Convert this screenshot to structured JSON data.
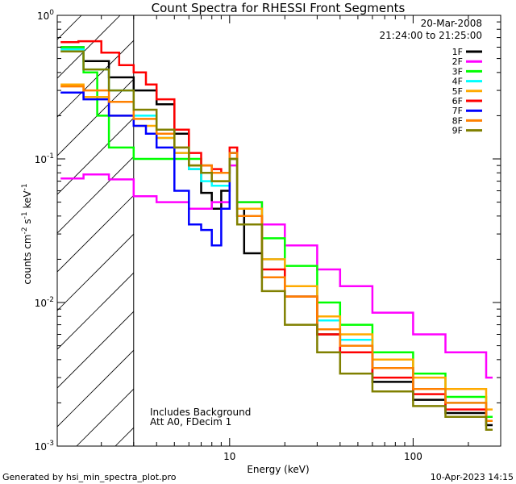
{
  "chart_data": {
    "type": "line",
    "title": "Count Spectra for RHESSI Front Segments",
    "xlabel": "Energy (keV)",
    "ylabel": "counts cm⁻² s⁻¹ keV⁻¹",
    "ylabel_parts": {
      "base": "counts cm",
      "exp1": "-2",
      "mid": " s",
      "exp2": "-1",
      "mid2": " keV",
      "exp3": "-1"
    },
    "xscale": "log",
    "yscale": "log",
    "xlim": [
      1.15,
      300
    ],
    "ylim": [
      0.001,
      1.0
    ],
    "x_ticks": [
      {
        "v": 10,
        "label": "10"
      },
      {
        "v": 100,
        "label": "100"
      }
    ],
    "y_ticks": [
      {
        "v": 1.0,
        "base": "10",
        "exp": "0"
      },
      {
        "v": 0.1,
        "base": "10",
        "exp": "-1"
      },
      {
        "v": 0.01,
        "base": "10",
        "exp": "-2"
      },
      {
        "v": 0.001,
        "base": "10",
        "exp": "-3"
      }
    ],
    "hatched_region_max_energy": 3,
    "legend_position": "top-right",
    "annotations": {
      "date": "20-Mar-2008",
      "time_range": "21:24:00 to 21:25:00",
      "background_note": "Includes Background",
      "attenuator_note": "Att A0, FDecim 1"
    },
    "series": [
      {
        "name": "1F",
        "color": "#000000",
        "values": [
          [
            1.2,
            0.6
          ],
          [
            1.6,
            0.48
          ],
          [
            2.2,
            0.37
          ],
          [
            3.0,
            0.3
          ],
          [
            4.0,
            0.24
          ],
          [
            5.0,
            0.15
          ],
          [
            6.0,
            0.085
          ],
          [
            7.0,
            0.058
          ],
          [
            8.0,
            0.045
          ],
          [
            9.0,
            0.06
          ],
          [
            10.0,
            0.1
          ],
          [
            11.0,
            0.045
          ],
          [
            12.0,
            0.022
          ],
          [
            15.0,
            0.015
          ],
          [
            20.0,
            0.011
          ],
          [
            30.0,
            0.006
          ],
          [
            40.0,
            0.0045
          ],
          [
            60.0,
            0.0028
          ],
          [
            100.0,
            0.0021
          ],
          [
            150.0,
            0.0017
          ],
          [
            250.0,
            0.0014
          ]
        ]
      },
      {
        "name": "2F",
        "color": "#ff00ff",
        "values": [
          [
            1.2,
            0.073
          ],
          [
            1.6,
            0.078
          ],
          [
            2.2,
            0.072
          ],
          [
            3.0,
            0.055
          ],
          [
            4.0,
            0.05
          ],
          [
            6.0,
            0.045
          ],
          [
            8.0,
            0.05
          ],
          [
            10.0,
            0.09
          ],
          [
            11.0,
            0.05
          ],
          [
            15.0,
            0.035
          ],
          [
            20.0,
            0.025
          ],
          [
            30.0,
            0.017
          ],
          [
            40.0,
            0.013
          ],
          [
            60.0,
            0.0085
          ],
          [
            100.0,
            0.006
          ],
          [
            150.0,
            0.0045
          ],
          [
            250.0,
            0.003
          ]
        ]
      },
      {
        "name": "3F",
        "color": "#00ff00",
        "values": [
          [
            1.2,
            0.6
          ],
          [
            1.6,
            0.4
          ],
          [
            1.9,
            0.2
          ],
          [
            2.2,
            0.12
          ],
          [
            3.0,
            0.1
          ],
          [
            4.0,
            0.1
          ],
          [
            5.0,
            0.1
          ],
          [
            6.0,
            0.1
          ],
          [
            7.0,
            0.09
          ],
          [
            8.0,
            0.08
          ],
          [
            10.0,
            0.11
          ],
          [
            11.0,
            0.05
          ],
          [
            15.0,
            0.028
          ],
          [
            20.0,
            0.018
          ],
          [
            30.0,
            0.01
          ],
          [
            40.0,
            0.007
          ],
          [
            60.0,
            0.0045
          ],
          [
            100.0,
            0.0032
          ],
          [
            150.0,
            0.0022
          ],
          [
            250.0,
            0.0016
          ]
        ]
      },
      {
        "name": "4F",
        "color": "#00ffff",
        "values": [
          [
            1.2,
            0.58
          ],
          [
            1.6,
            0.42
          ],
          [
            2.2,
            0.3
          ],
          [
            3.0,
            0.2
          ],
          [
            4.0,
            0.14
          ],
          [
            5.0,
            0.11
          ],
          [
            6.0,
            0.085
          ],
          [
            7.0,
            0.07
          ],
          [
            8.0,
            0.065
          ],
          [
            10.0,
            0.1
          ],
          [
            11.0,
            0.045
          ],
          [
            15.0,
            0.02
          ],
          [
            20.0,
            0.013
          ],
          [
            30.0,
            0.0075
          ],
          [
            40.0,
            0.0055
          ],
          [
            60.0,
            0.0035
          ],
          [
            100.0,
            0.0025
          ],
          [
            150.0,
            0.002
          ],
          [
            250.0,
            0.0015
          ]
        ]
      },
      {
        "name": "5F",
        "color": "#ffaa00",
        "values": [
          [
            1.2,
            0.33
          ],
          [
            1.6,
            0.27
          ],
          [
            2.2,
            0.2
          ],
          [
            3.0,
            0.17
          ],
          [
            4.0,
            0.14
          ],
          [
            5.0,
            0.11
          ],
          [
            6.0,
            0.09
          ],
          [
            7.0,
            0.08
          ],
          [
            8.0,
            0.07
          ],
          [
            10.0,
            0.1
          ],
          [
            11.0,
            0.045
          ],
          [
            15.0,
            0.02
          ],
          [
            20.0,
            0.013
          ],
          [
            30.0,
            0.008
          ],
          [
            40.0,
            0.006
          ],
          [
            60.0,
            0.004
          ],
          [
            100.0,
            0.003
          ],
          [
            150.0,
            0.0025
          ],
          [
            250.0,
            0.0018
          ]
        ]
      },
      {
        "name": "6F",
        "color": "#ff0000",
        "values": [
          [
            1.2,
            0.65
          ],
          [
            1.5,
            0.66
          ],
          [
            2.0,
            0.55
          ],
          [
            2.5,
            0.45
          ],
          [
            3.0,
            0.4
          ],
          [
            3.5,
            0.33
          ],
          [
            4.0,
            0.26
          ],
          [
            5.0,
            0.16
          ],
          [
            6.0,
            0.11
          ],
          [
            7.0,
            0.09
          ],
          [
            8.0,
            0.085
          ],
          [
            9.0,
            0.08
          ],
          [
            10.0,
            0.12
          ],
          [
            11.0,
            0.04
          ],
          [
            15.0,
            0.017
          ],
          [
            20.0,
            0.011
          ],
          [
            30.0,
            0.006
          ],
          [
            40.0,
            0.0045
          ],
          [
            60.0,
            0.003
          ],
          [
            100.0,
            0.0023
          ],
          [
            150.0,
            0.0018
          ],
          [
            250.0,
            0.0015
          ]
        ]
      },
      {
        "name": "7F",
        "color": "#0000ff",
        "values": [
          [
            1.2,
            0.29
          ],
          [
            1.6,
            0.26
          ],
          [
            2.2,
            0.2
          ],
          [
            3.0,
            0.17
          ],
          [
            3.5,
            0.15
          ],
          [
            4.0,
            0.12
          ],
          [
            5.0,
            0.06
          ],
          [
            6.0,
            0.035
          ],
          [
            7.0,
            0.032
          ],
          [
            8.0,
            0.025
          ],
          [
            9.0,
            0.045
          ],
          [
            10.0,
            0.11
          ],
          [
            11.0,
            0.04
          ]
        ]
      },
      {
        "name": "8F",
        "color": "#ff8000",
        "values": [
          [
            1.2,
            0.32
          ],
          [
            1.6,
            0.3
          ],
          [
            2.2,
            0.25
          ],
          [
            3.0,
            0.19
          ],
          [
            4.0,
            0.15
          ],
          [
            5.0,
            0.12
          ],
          [
            6.0,
            0.09
          ],
          [
            7.0,
            0.09
          ],
          [
            8.0,
            0.08
          ],
          [
            10.0,
            0.11
          ],
          [
            11.0,
            0.04
          ],
          [
            15.0,
            0.015
          ],
          [
            20.0,
            0.011
          ],
          [
            30.0,
            0.0065
          ],
          [
            40.0,
            0.005
          ],
          [
            60.0,
            0.0035
          ],
          [
            100.0,
            0.0025
          ],
          [
            150.0,
            0.002
          ],
          [
            250.0,
            0.0015
          ]
        ]
      },
      {
        "name": "9F",
        "color": "#808000",
        "values": [
          [
            1.2,
            0.56
          ],
          [
            1.6,
            0.42
          ],
          [
            2.2,
            0.3
          ],
          [
            3.0,
            0.22
          ],
          [
            4.0,
            0.16
          ],
          [
            5.0,
            0.12
          ],
          [
            6.0,
            0.09
          ],
          [
            7.0,
            0.08
          ],
          [
            8.0,
            0.07
          ],
          [
            10.0,
            0.1
          ],
          [
            11.0,
            0.035
          ],
          [
            15.0,
            0.012
          ],
          [
            20.0,
            0.007
          ],
          [
            30.0,
            0.0045
          ],
          [
            40.0,
            0.0032
          ],
          [
            60.0,
            0.0024
          ],
          [
            100.0,
            0.0019
          ],
          [
            150.0,
            0.0016
          ],
          [
            250.0,
            0.0013
          ]
        ]
      }
    ]
  },
  "footer": {
    "generator": "Generated by hsi_min_spectra_plot.pro",
    "timestamp": "10-Apr-2023 14:15"
  }
}
